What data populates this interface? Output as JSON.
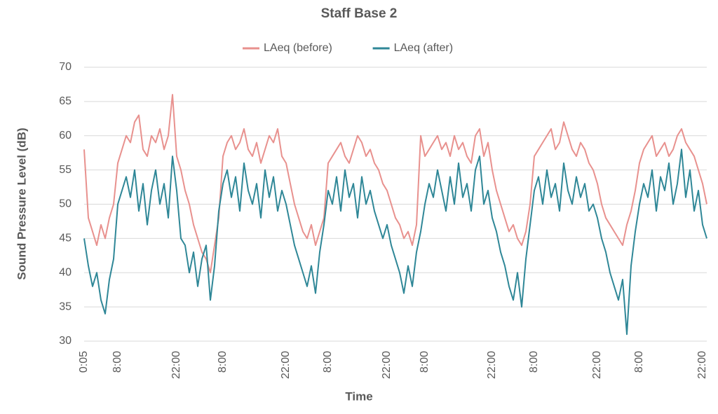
{
  "chart_data": {
    "type": "line",
    "title": "Staff Base 2",
    "x_label": "Time",
    "y_label": "Sound Pressure Level (dB)",
    "categories": [
      "0:05",
      null,
      null,
      null,
      null,
      null,
      null,
      null,
      "8:00",
      null,
      null,
      null,
      null,
      null,
      null,
      null,
      null,
      null,
      null,
      null,
      null,
      null,
      "22:00",
      null,
      null,
      null,
      null,
      null,
      null,
      null,
      null,
      null,
      null,
      "8:00",
      null,
      null,
      null,
      null,
      null,
      null,
      null,
      null,
      null,
      null,
      null,
      null,
      null,
      null,
      "22:00",
      null,
      null,
      null,
      null,
      null,
      null,
      null,
      null,
      null,
      "8:00",
      null,
      null,
      null,
      null,
      null,
      null,
      null,
      null,
      null,
      null,
      null,
      null,
      null,
      "22:00",
      null,
      null,
      null,
      null,
      null,
      null,
      null,
      null,
      "8:00",
      null,
      null,
      null,
      null,
      null,
      null,
      null,
      null,
      null,
      null,
      null,
      null,
      null,
      null,
      null,
      "22:00",
      null,
      null,
      null,
      null,
      null,
      null,
      null,
      null,
      null,
      "8:00",
      null,
      null,
      null,
      null,
      null,
      null,
      null,
      null,
      null,
      null,
      null,
      null,
      null,
      null,
      "22:00",
      null,
      null,
      null,
      null,
      null,
      null,
      null,
      null,
      null,
      "8:00",
      null,
      null,
      null,
      null,
      null,
      null,
      null,
      null,
      null,
      null,
      null,
      null,
      null,
      null,
      "22:00",
      null
    ],
    "series": [
      {
        "name": "LAeq (before)",
        "color": "#e8918e",
        "values": [
          58,
          48,
          46,
          44,
          47,
          45,
          48,
          50,
          56,
          58,
          60,
          59,
          62,
          63,
          58,
          57,
          60,
          59,
          61,
          58,
          60,
          66,
          57,
          55,
          52,
          50,
          47,
          45,
          43,
          42,
          40,
          44,
          48,
          57,
          59,
          60,
          58,
          59,
          61,
          58,
          57,
          59,
          56,
          58,
          60,
          59,
          61,
          57,
          56,
          53,
          50,
          48,
          46,
          45,
          47,
          44,
          46,
          48,
          56,
          57,
          58,
          59,
          57,
          56,
          58,
          60,
          59,
          57,
          58,
          56,
          55,
          53,
          52,
          50,
          48,
          47,
          45,
          46,
          44,
          47,
          60,
          57,
          58,
          59,
          60,
          58,
          59,
          57,
          60,
          58,
          59,
          57,
          56,
          60,
          61,
          57,
          59,
          55,
          52,
          50,
          48,
          46,
          47,
          45,
          44,
          46,
          50,
          57,
          58,
          59,
          60,
          61,
          58,
          59,
          62,
          60,
          58,
          57,
          59,
          58,
          56,
          55,
          53,
          50,
          48,
          47,
          46,
          45,
          44,
          47,
          49,
          52,
          56,
          58,
          59,
          60,
          57,
          58,
          59,
          57,
          58,
          60,
          61,
          59,
          58,
          57,
          55,
          53,
          50
        ]
      },
      {
        "name": "LAeq (after)",
        "color": "#2f8797",
        "values": [
          45,
          41,
          38,
          40,
          36,
          34,
          39,
          42,
          50,
          52,
          54,
          51,
          55,
          49,
          53,
          47,
          52,
          55,
          50,
          53,
          48,
          57,
          52,
          45,
          44,
          40,
          43,
          38,
          42,
          44,
          36,
          41,
          49,
          53,
          55,
          51,
          54,
          49,
          56,
          52,
          50,
          53,
          48,
          55,
          51,
          54,
          49,
          52,
          50,
          47,
          44,
          42,
          40,
          38,
          41,
          37,
          43,
          47,
          52,
          50,
          54,
          49,
          55,
          51,
          53,
          48,
          54,
          50,
          52,
          49,
          47,
          45,
          47,
          44,
          42,
          40,
          37,
          41,
          38,
          43,
          46,
          50,
          53,
          51,
          55,
          52,
          49,
          54,
          50,
          56,
          51,
          53,
          49,
          55,
          57,
          50,
          52,
          48,
          46,
          43,
          41,
          38,
          36,
          40,
          35,
          42,
          47,
          52,
          54,
          50,
          55,
          51,
          53,
          49,
          56,
          52,
          50,
          54,
          51,
          53,
          49,
          50,
          48,
          45,
          43,
          40,
          38,
          36,
          39,
          31,
          41,
          46,
          50,
          53,
          51,
          55,
          49,
          54,
          52,
          56,
          50,
          53,
          58,
          51,
          55,
          49,
          52,
          47,
          45
        ]
      }
    ],
    "ylim": [
      30,
      70
    ],
    "yticks": [
      30,
      35,
      40,
      45,
      50,
      55,
      60,
      65,
      70
    ],
    "grid": true,
    "legend": "top"
  }
}
